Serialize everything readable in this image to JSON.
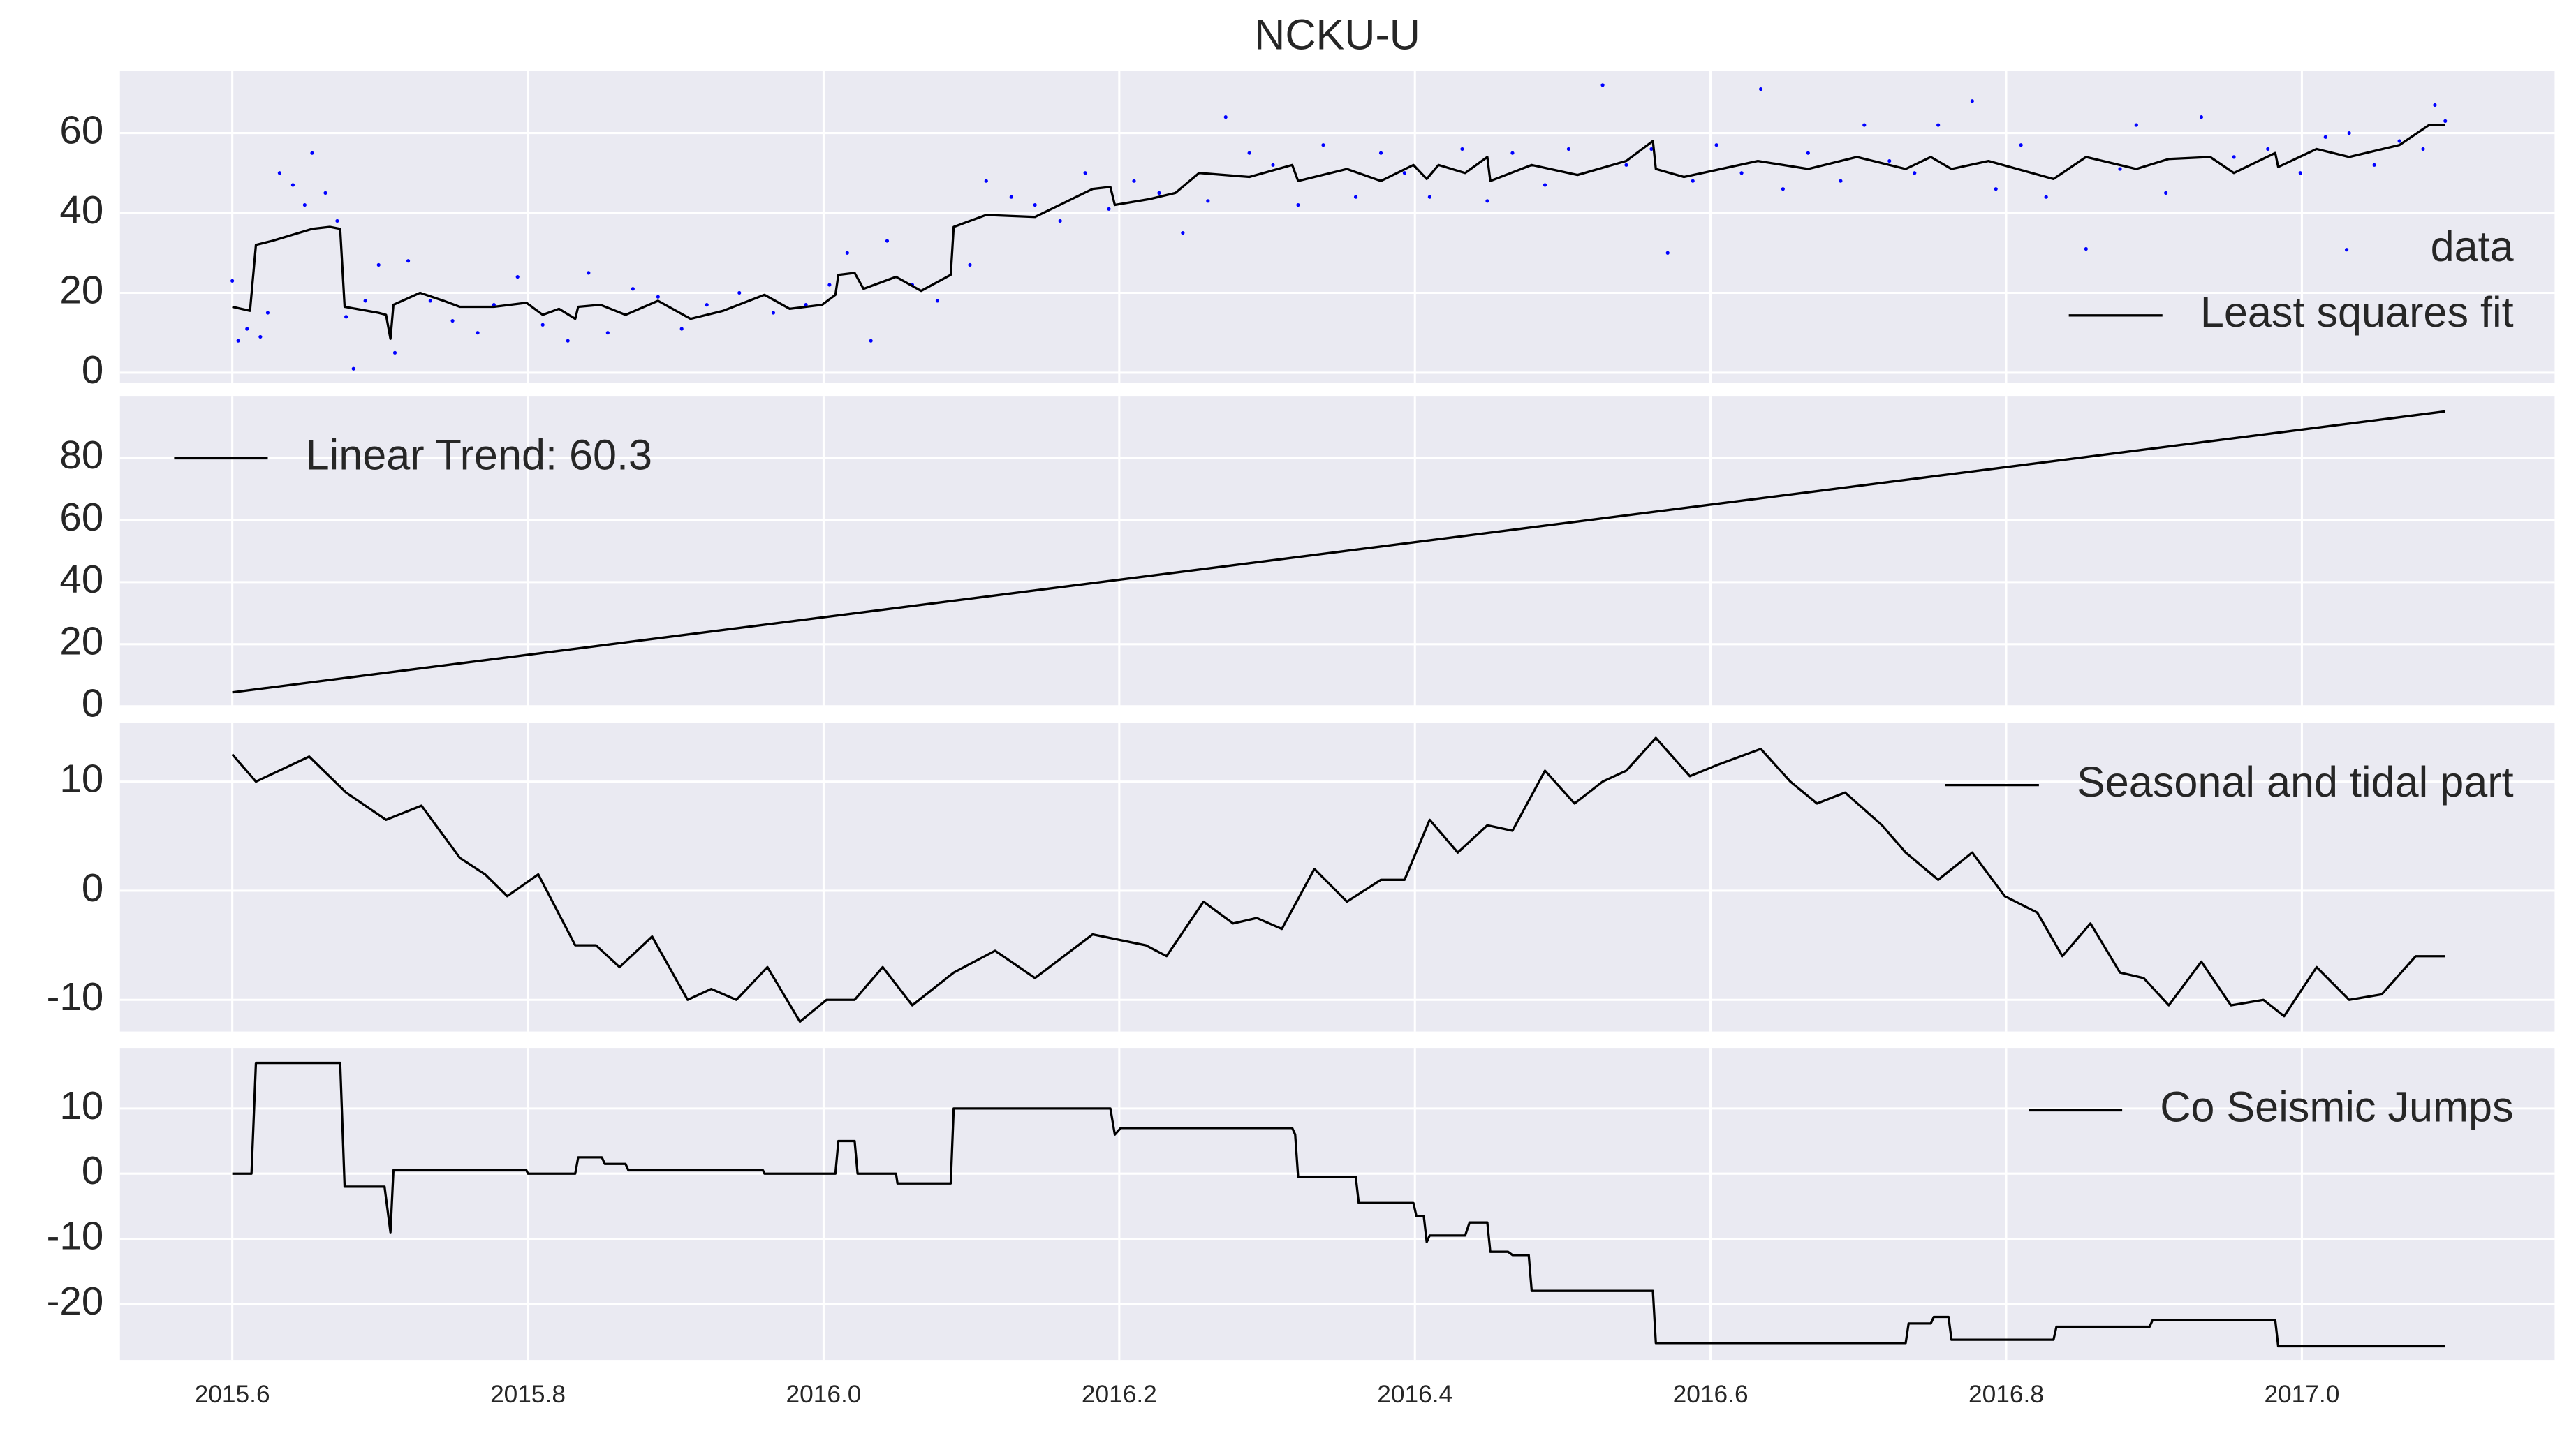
{
  "chart_data": [
    {
      "type": "line",
      "title": "NCKU-U",
      "xlim": [
        2015.524,
        2017.171
      ],
      "ylim": [
        -2.5,
        75.6
      ],
      "xticks": [
        2015.6,
        2015.8,
        {
          "value": 2016,
          "label": "2016.0"
        },
        2016.2,
        2016.4,
        2016.6,
        2016.8,
        {
          "value": 2017,
          "label": "2017.0"
        }
      ],
      "xtick_labels": false,
      "yticks": [
        0,
        20,
        40,
        60
      ],
      "grid": true,
      "legend": "lower right",
      "series": [
        {
          "name": "data",
          "mode": "markers",
          "color": "#0000ff",
          "x": [
            2015.6,
            2015.604,
            2015.61,
            2015.619,
            2015.624,
            2015.632,
            2015.641,
            2015.649,
            2015.654,
            2015.663,
            2015.671,
            2015.677,
            2015.682,
            2015.69,
            2015.699,
            2015.71,
            2015.719,
            2015.734,
            2015.749,
            2015.766,
            2015.777,
            2015.793,
            2015.81,
            2015.827,
            2015.841,
            2015.854,
            2015.871,
            2015.888,
            2015.904,
            2015.921,
            2015.943,
            2015.966,
            2015.988,
            2016.004,
            2016.016,
            2016.032,
            2016.043,
            2016.06,
            2016.077,
            2016.099,
            2016.11,
            2016.127,
            2016.143,
            2016.16,
            2016.177,
            2016.193,
            2016.21,
            2016.227,
            2016.243,
            2016.26,
            2016.272,
            2016.288,
            2016.304,
            2016.321,
            2016.338,
            2016.36,
            2016.377,
            2016.393,
            2016.41,
            2016.432,
            2016.449,
            2016.466,
            2016.488,
            2016.504,
            2016.527,
            2016.543,
            2016.56,
            2016.571,
            2016.588,
            2016.604,
            2016.621,
            2016.634,
            2016.649,
            2016.666,
            2016.688,
            2016.704,
            2016.721,
            2016.738,
            2016.754,
            2016.777,
            2016.793,
            2016.81,
            2016.827,
            2016.854,
            2016.877,
            2016.888,
            2016.908,
            2016.932,
            2016.954,
            2016.977,
            2016.999,
            2017.016,
            2017.032,
            2017.049,
            2017.066,
            2017.082,
            2017.09,
            2017.097
          ],
          "values": [
            23,
            8,
            11,
            9,
            15,
            50,
            47,
            42,
            55,
            45,
            38,
            14,
            1,
            18,
            27,
            5,
            28,
            18,
            13,
            10,
            17,
            24,
            12,
            8,
            25,
            10,
            21,
            19,
            11,
            17,
            20,
            15,
            17,
            22,
            30,
            8,
            33,
            22,
            18,
            27,
            48,
            44,
            42,
            38,
            50,
            41,
            48,
            45,
            35,
            43,
            64,
            55,
            52,
            42,
            57,
            44,
            55,
            50,
            44,
            56,
            43,
            55,
            47,
            56,
            72,
            52,
            56,
            30,
            48,
            57,
            50,
            71,
            46,
            55,
            48,
            62,
            53,
            50,
            62,
            68,
            46,
            57,
            44,
            31,
            51,
            62,
            45,
            64,
            54,
            56,
            50,
            59,
            60,
            52,
            58,
            56,
            67,
            63
          ]
        },
        {
          "name": "Least squares fit",
          "mode": "line",
          "color": "#000000",
          "x": [
            2015.6,
            2015.612,
            2015.616,
            2015.627,
            2015.654,
            2015.666,
            2015.673,
            2015.676,
            2015.699,
            2015.704,
            2015.707,
            2015.709,
            2015.727,
            2015.743,
            2015.754,
            2015.777,
            2015.799,
            2015.81,
            2015.821,
            2015.832,
            2015.834,
            2015.849,
            2015.866,
            2015.888,
            2015.91,
            2015.932,
            2015.96,
            2015.977,
            2015.999,
            2016.008,
            2016.01,
            2016.021,
            2016.027,
            2016.049,
            2016.066,
            2016.086,
            2016.088,
            2016.11,
            2016.143,
            2016.182,
            2016.194,
            2016.197,
            2016.221,
            2016.238,
            2016.254,
            2016.288,
            2016.317,
            2016.321,
            2016.354,
            2016.377,
            2016.399,
            2016.408,
            2016.416,
            2016.434,
            2016.449,
            2016.451,
            2016.479,
            2016.51,
            2016.543,
            2016.561,
            2016.563,
            2016.582,
            2016.632,
            2016.666,
            2016.699,
            2016.732,
            2016.749,
            2016.763,
            2016.788,
            2016.832,
            2016.854,
            2016.888,
            2016.91,
            2016.938,
            2016.954,
            2016.982,
            2016.984,
            2017.01,
            2017.032,
            2017.066,
            2017.086,
            2017.097
          ],
          "values": [
            16.5,
            15.5,
            32,
            33,
            36,
            36.5,
            36,
            16.5,
            15,
            14.5,
            8.5,
            17,
            20,
            18,
            16.5,
            16.5,
            17.5,
            14.5,
            16,
            13.5,
            16.5,
            17,
            14.5,
            18,
            13.5,
            15.5,
            19.5,
            16,
            17,
            19.5,
            24.5,
            25,
            21,
            24,
            20.5,
            24.5,
            36.5,
            39.5,
            39,
            46,
            46.5,
            42,
            43.5,
            45,
            50,
            49,
            52,
            48,
            51,
            48,
            52,
            48.5,
            52,
            50,
            54,
            48,
            52,
            49.5,
            53,
            58,
            51,
            49,
            53,
            51,
            54,
            51,
            54,
            51,
            53,
            48.5,
            54,
            51,
            53.5,
            54,
            50,
            55,
            51.5,
            56,
            54,
            57,
            62,
            62
          ]
        }
      ]
    },
    {
      "type": "line",
      "xlim": [
        2015.524,
        2017.171
      ],
      "ylim": [
        0,
        100
      ],
      "xticks": [
        2015.6,
        2015.8,
        {
          "value": 2016,
          "label": "2016.0"
        },
        2016.2,
        2016.4,
        2016.6,
        2016.8,
        {
          "value": 2017,
          "label": "2017.0"
        }
      ],
      "xtick_labels": false,
      "yticks": [
        0,
        20,
        40,
        60,
        80
      ],
      "grid": true,
      "legend": "upper left",
      "series": [
        {
          "name": "Linear Trend: 60.3",
          "mode": "line",
          "color": "#000000",
          "x": [
            2015.6,
            2017.097
          ],
          "values": [
            4.5,
            95
          ]
        }
      ]
    },
    {
      "type": "line",
      "xlim": [
        2015.524,
        2017.171
      ],
      "ylim": [
        -12.9,
        15.4
      ],
      "xticks": [
        2015.6,
        2015.8,
        {
          "value": 2016,
          "label": "2016.0"
        },
        2016.2,
        2016.4,
        2016.6,
        2016.8,
        {
          "value": 2017,
          "label": "2017.0"
        }
      ],
      "xtick_labels": false,
      "yticks": [
        -10,
        0,
        10
      ],
      "grid": true,
      "legend": "upper right",
      "series": [
        {
          "name": "Seasonal and tidal part",
          "mode": "line",
          "color": "#000000",
          "x": [
            2015.6,
            2015.616,
            2015.652,
            2015.677,
            2015.704,
            2015.728,
            2015.754,
            2015.771,
            2015.786,
            2015.807,
            2015.832,
            2015.846,
            2015.862,
            2015.884,
            2015.908,
            2015.924,
            2015.941,
            2015.962,
            2015.984,
            2016.002,
            2016.021,
            2016.04,
            2016.06,
            2016.088,
            2016.116,
            2016.143,
            2016.182,
            2016.218,
            2016.232,
            2016.257,
            2016.277,
            2016.293,
            2016.31,
            2016.332,
            2016.354,
            2016.377,
            2016.393,
            2016.41,
            2016.429,
            2016.449,
            2016.466,
            2016.488,
            2016.508,
            2016.527,
            2016.543,
            2016.563,
            2016.586,
            2016.604,
            2016.634,
            2016.654,
            2016.672,
            2016.691,
            2016.716,
            2016.732,
            2016.754,
            2016.777,
            2016.799,
            2016.821,
            2016.838,
            2016.857,
            2016.877,
            2016.893,
            2016.91,
            2016.932,
            2016.952,
            2016.974,
            2016.988,
            2017.01,
            2017.032,
            2017.054,
            2017.077,
            2017.097
          ],
          "values": [
            12.5,
            10,
            12.3,
            9,
            6.5,
            7.8,
            3,
            1.5,
            -0.5,
            1.5,
            -5,
            -5,
            -7,
            -4.2,
            -10,
            -9,
            -10,
            -7,
            -12,
            -10,
            -10,
            -7,
            -10.5,
            -7.5,
            -5.5,
            -8,
            -4,
            -5,
            -6,
            -1,
            -3,
            -2.5,
            -3.5,
            2,
            -1,
            1,
            1,
            6.5,
            3.5,
            6,
            5.5,
            11,
            8,
            10,
            11,
            14,
            10.5,
            11.5,
            13,
            10,
            8,
            9,
            6,
            3.5,
            1,
            3.5,
            -0.5,
            -2,
            -6,
            -3,
            -7.5,
            -8,
            -10.5,
            -6.5,
            -10.5,
            -10,
            -11.5,
            -7,
            -10,
            -9.5,
            -6,
            -6
          ]
        }
      ]
    },
    {
      "type": "line",
      "xlim": [
        2015.524,
        2017.171
      ],
      "ylim": [
        -28.6,
        19.3
      ],
      "xticks": [
        2015.6,
        2015.8,
        {
          "value": 2016,
          "label": "2016.0"
        },
        2016.2,
        2016.4,
        2016.6,
        2016.8,
        {
          "value": 2017,
          "label": "2017.0"
        }
      ],
      "xtick_labels": true,
      "yticks": [
        -20,
        -10,
        0,
        10
      ],
      "grid": true,
      "legend": "upper right",
      "series": [
        {
          "name": "Co Seismic Jumps",
          "mode": "line",
          "color": "#000000",
          "x": [
            2015.6,
            2015.613,
            2015.616,
            2015.673,
            2015.676,
            2015.703,
            2015.707,
            2015.709,
            2015.799,
            2015.8,
            2015.832,
            2015.834,
            2015.85,
            2015.852,
            2015.866,
            2015.868,
            2015.959,
            2015.96,
            2016.008,
            2016.01,
            2016.021,
            2016.023,
            2016.049,
            2016.05,
            2016.086,
            2016.088,
            2016.194,
            2016.197,
            2016.201,
            2016.317,
            2016.319,
            2016.321,
            2016.36,
            2016.362,
            2016.399,
            2016.401,
            2016.406,
            2016.408,
            2016.41,
            2016.434,
            2016.437,
            2016.449,
            2016.451,
            2016.463,
            2016.466,
            2016.477,
            2016.479,
            2016.561,
            2016.563,
            2016.732,
            2016.734,
            2016.749,
            2016.751,
            2016.761,
            2016.763,
            2016.832,
            2016.834,
            2016.897,
            2016.899,
            2016.982,
            2016.984,
            2017.097
          ],
          "values": [
            0,
            0,
            17,
            17,
            -2,
            -2,
            -9,
            0.5,
            0.5,
            0,
            0,
            2.5,
            2.5,
            1.5,
            1.5,
            0.5,
            0.5,
            0,
            0,
            5,
            5,
            0,
            0,
            -1.5,
            -1.5,
            10,
            10,
            6,
            7,
            7,
            6,
            -0.5,
            -0.5,
            -4.5,
            -4.5,
            -6.5,
            -6.5,
            -10.5,
            -9.5,
            -9.5,
            -7.5,
            -7.5,
            -12,
            -12,
            -12.5,
            -12.5,
            -18,
            -18,
            -26,
            -26,
            -23,
            -23,
            -22,
            -22,
            -25.5,
            -25.5,
            -23.5,
            -23.5,
            -22.5,
            -22.5,
            -26.5,
            -26.5
          ]
        }
      ]
    }
  ]
}
